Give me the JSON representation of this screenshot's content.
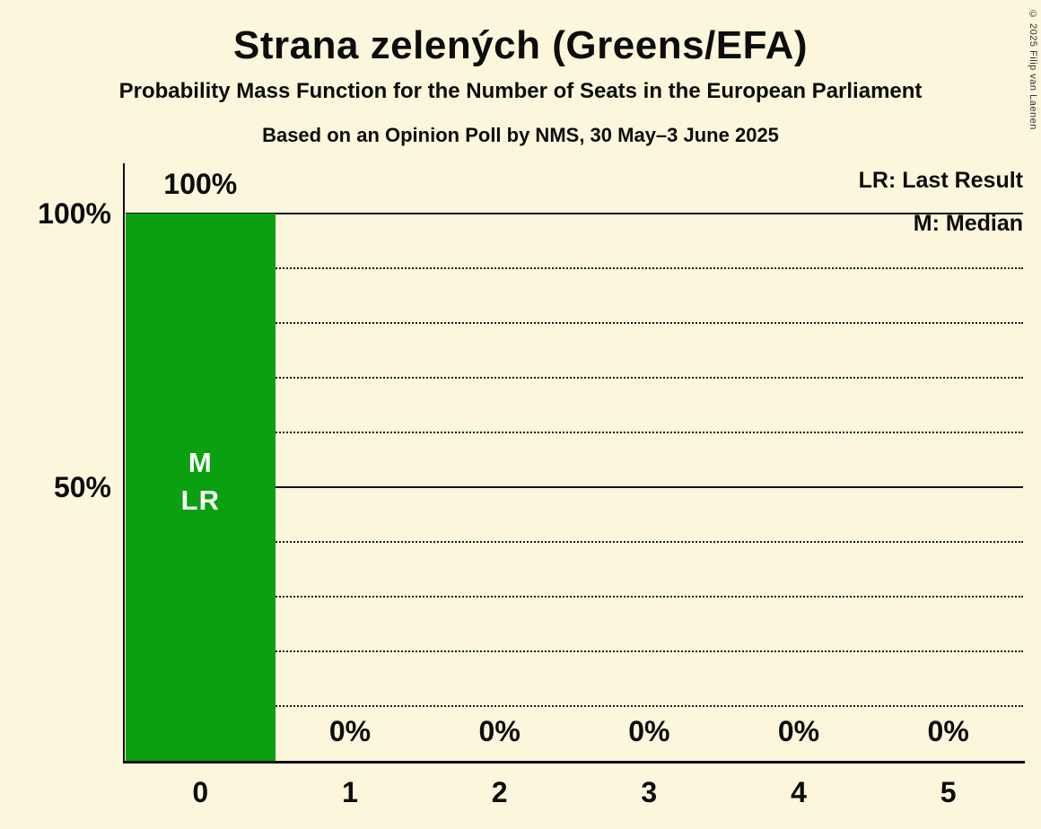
{
  "copyright": "© 2025 Filip van Laenen",
  "colors": {
    "background": "#FBF6DC",
    "bar": "#0AA00F",
    "text": "#0D0D0D",
    "bar_annotation_text": "#FFFFFF"
  },
  "legend": {
    "last_result": "LR: Last Result",
    "median": "M: Median"
  },
  "chart_data": {
    "type": "bar",
    "title": "Strana zelených (Greens/EFA)",
    "subtitle": "Probability Mass Function for the Number of Seats in the European Parliament",
    "poll_info": "Based on an Opinion Poll by NMS, 30 May–3 June 2025",
    "categories": [
      "0",
      "1",
      "2",
      "3",
      "4",
      "5"
    ],
    "values": [
      100,
      0,
      0,
      0,
      0,
      0
    ],
    "value_labels": [
      "100%",
      "0%",
      "0%",
      "0%",
      "0%",
      "0%"
    ],
    "bar_annotations": [
      [
        "M",
        "LR"
      ],
      [],
      [],
      [],
      [],
      []
    ],
    "y_ticks": [
      {
        "value": 100,
        "label": "100%"
      },
      {
        "value": 50,
        "label": "50%"
      }
    ],
    "solid_gridlines": [
      100,
      50
    ],
    "dotted_gridlines": [
      90,
      80,
      70,
      60,
      40,
      30,
      20,
      10
    ],
    "ylim": [
      0,
      100
    ],
    "legend_position": "top-right",
    "grid": "dotted-horizontal"
  }
}
